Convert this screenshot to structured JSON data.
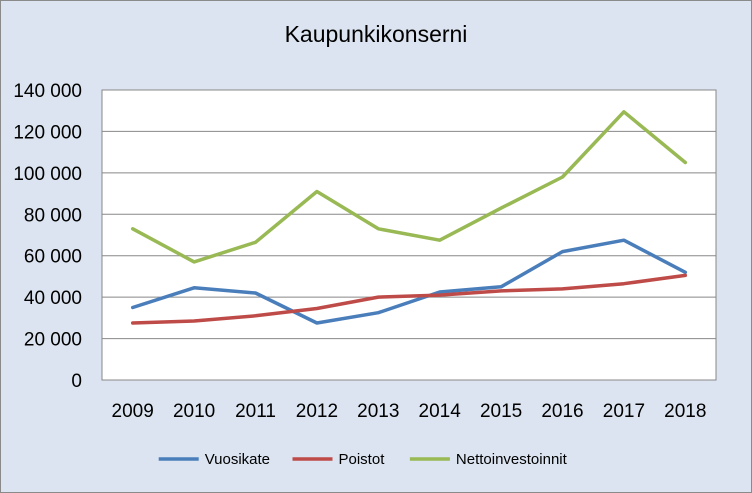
{
  "chart_data": {
    "type": "line",
    "title": "Kaupunkikonserni",
    "xlabel": "",
    "ylabel": "",
    "categories": [
      "2009",
      "2010",
      "2011",
      "2012",
      "2013",
      "2014",
      "2015",
      "2016",
      "2017",
      "2018"
    ],
    "ylim": [
      0,
      140000
    ],
    "yticks": [
      0,
      20000,
      40000,
      60000,
      80000,
      100000,
      120000,
      140000
    ],
    "ytick_labels": [
      "0",
      "20 000",
      "40 000",
      "60 000",
      "80 000",
      "100 000",
      "120 000",
      "140 000"
    ],
    "grid": true,
    "legend_position": "bottom",
    "series": [
      {
        "name": "Vuosikate",
        "color": "#4a7ebb",
        "values": [
          35000,
          44500,
          42000,
          27500,
          32500,
          42500,
          45000,
          62000,
          67500,
          52000
        ]
      },
      {
        "name": "Poistot",
        "color": "#be4b48",
        "values": [
          27500,
          28500,
          31000,
          34500,
          40000,
          41000,
          43000,
          44000,
          46500,
          50500
        ]
      },
      {
        "name": "Nettoinvestoinnit",
        "color": "#98b954",
        "values": [
          73000,
          57000,
          66500,
          91000,
          73000,
          67500,
          83000,
          98000,
          129500,
          105000
        ]
      }
    ]
  }
}
